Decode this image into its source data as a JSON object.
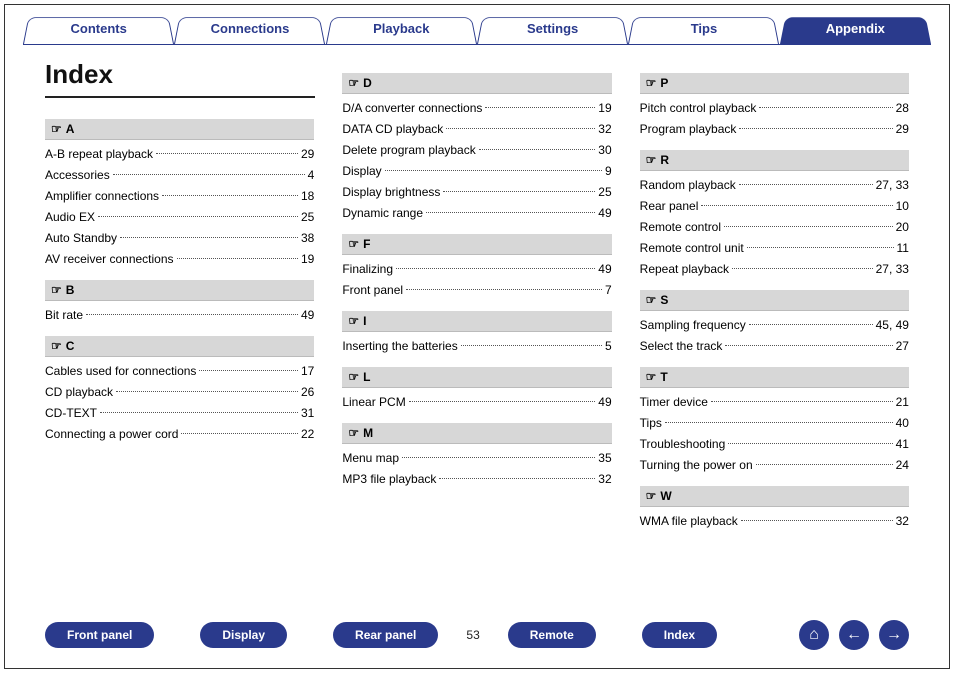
{
  "colors": {
    "brand": "#2a3a8c",
    "headerBg": "#d7d7d7",
    "text": "#111111",
    "pageBg": "#ffffff"
  },
  "tabs": [
    {
      "label": "Contents",
      "active": false
    },
    {
      "label": "Connections",
      "active": false
    },
    {
      "label": "Playback",
      "active": false
    },
    {
      "label": "Settings",
      "active": false
    },
    {
      "label": "Tips",
      "active": false
    },
    {
      "label": "Appendix",
      "active": true
    }
  ],
  "title": "Index",
  "pointer_glyph": "☞",
  "columns": [
    [
      {
        "letter": "A",
        "entries": [
          {
            "term": "A-B repeat playback",
            "page": "29"
          },
          {
            "term": "Accessories",
            "page": "4"
          },
          {
            "term": "Amplifier connections",
            "page": "18"
          },
          {
            "term": "Audio EX",
            "page": "25"
          },
          {
            "term": "Auto Standby",
            "page": "38"
          },
          {
            "term": "AV receiver connections",
            "page": "19"
          }
        ]
      },
      {
        "letter": "B",
        "entries": [
          {
            "term": "Bit rate",
            "page": "49"
          }
        ]
      },
      {
        "letter": "C",
        "entries": [
          {
            "term": "Cables used for connections",
            "page": "17"
          },
          {
            "term": "CD playback",
            "page": "26"
          },
          {
            "term": "CD-TEXT",
            "page": "31"
          },
          {
            "term": "Connecting a power cord",
            "page": "22"
          }
        ]
      }
    ],
    [
      {
        "letter": "D",
        "entries": [
          {
            "term": "D/A converter connections",
            "page": "19"
          },
          {
            "term": "DATA CD playback",
            "page": "32"
          },
          {
            "term": "Delete program playback",
            "page": "30"
          },
          {
            "term": "Display",
            "page": "9"
          },
          {
            "term": "Display brightness",
            "page": "25"
          },
          {
            "term": "Dynamic range",
            "page": "49"
          }
        ]
      },
      {
        "letter": "F",
        "entries": [
          {
            "term": "Finalizing",
            "page": "49"
          },
          {
            "term": "Front panel",
            "page": "7"
          }
        ]
      },
      {
        "letter": "I",
        "entries": [
          {
            "term": "Inserting the batteries",
            "page": "5"
          }
        ]
      },
      {
        "letter": "L",
        "entries": [
          {
            "term": "Linear PCM",
            "page": "49"
          }
        ]
      },
      {
        "letter": "M",
        "entries": [
          {
            "term": "Menu map",
            "page": "35"
          },
          {
            "term": "MP3 file playback",
            "page": "32"
          }
        ]
      }
    ],
    [
      {
        "letter": "P",
        "entries": [
          {
            "term": "Pitch control playback",
            "page": "28"
          },
          {
            "term": "Program playback",
            "page": "29"
          }
        ]
      },
      {
        "letter": "R",
        "entries": [
          {
            "term": "Random playback",
            "page": "27, 33"
          },
          {
            "term": "Rear panel",
            "page": "10"
          },
          {
            "term": "Remote control",
            "page": "20"
          },
          {
            "term": "Remote control unit",
            "page": "11"
          },
          {
            "term": "Repeat playback",
            "page": "27, 33"
          }
        ]
      },
      {
        "letter": "S",
        "entries": [
          {
            "term": "Sampling frequency",
            "page": "45, 49"
          },
          {
            "term": "Select the track",
            "page": "27"
          }
        ]
      },
      {
        "letter": "T",
        "entries": [
          {
            "term": "Timer device",
            "page": "21"
          },
          {
            "term": "Tips",
            "page": "40"
          },
          {
            "term": "Troubleshooting",
            "page": "41"
          },
          {
            "term": "Turning the power on",
            "page": "24"
          }
        ]
      },
      {
        "letter": "W",
        "entries": [
          {
            "term": "WMA file playback",
            "page": "32"
          }
        ]
      }
    ]
  ],
  "bottom_links": [
    {
      "label": "Front panel"
    },
    {
      "label": "Display"
    },
    {
      "label": "Rear panel"
    }
  ],
  "page_number": "53",
  "bottom_links_right": [
    {
      "label": "Remote"
    },
    {
      "label": "Index"
    }
  ],
  "nav_icons": {
    "home": "⌂",
    "prev": "←",
    "next": "→"
  }
}
